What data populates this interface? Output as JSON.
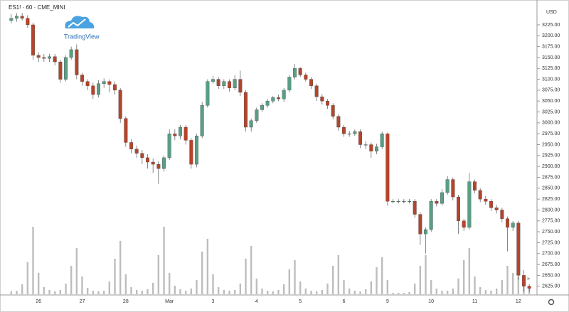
{
  "chart_data": {
    "type": "candlestick",
    "title": "ES1! · 60 · CME_MINI",
    "currency": "USD",
    "watermark": "TradingView",
    "up_color": "#5a9e85",
    "down_color": "#b5442c",
    "volume_color": "#bdbdbd",
    "ylim": [
      2605,
      3282
    ],
    "yticks": [
      {
        "value": 2625,
        "label": "2625.00"
      },
      {
        "value": 2650,
        "label": "2650.00"
      },
      {
        "value": 2675,
        "label": "2675.00"
      },
      {
        "value": 2700,
        "label": "2700.00"
      },
      {
        "value": 2725,
        "label": "2725.00"
      },
      {
        "value": 2750,
        "label": "2750.00"
      },
      {
        "value": 2775,
        "label": "2775.00"
      },
      {
        "value": 2800,
        "label": "2800.00"
      },
      {
        "value": 2825,
        "label": "2825.00"
      },
      {
        "value": 2850,
        "label": "2850.00"
      },
      {
        "value": 2875,
        "label": "2875.00"
      },
      {
        "value": 2900,
        "label": "2900.00"
      },
      {
        "value": 2925,
        "label": "2925.00"
      },
      {
        "value": 2950,
        "label": "2950.00"
      },
      {
        "value": 2975,
        "label": "2975.00"
      },
      {
        "value": 3000,
        "label": "3000.00"
      },
      {
        "value": 3025,
        "label": "3025.00"
      },
      {
        "value": 3050,
        "label": "3050.00"
      },
      {
        "value": 3075,
        "label": "3075.00"
      },
      {
        "value": 3100,
        "label": "3100.00"
      },
      {
        "value": 3125,
        "label": "3125.00"
      },
      {
        "value": 3150,
        "label": "3150.00"
      },
      {
        "value": 3175,
        "label": "3175.00"
      },
      {
        "value": 3200,
        "label": "3200.00"
      },
      {
        "value": 3225,
        "label": "3225.00"
      }
    ],
    "categories": [
      null,
      null,
      null,
      null,
      null,
      "26",
      null,
      null,
      null,
      null,
      null,
      null,
      null,
      "27",
      null,
      null,
      null,
      null,
      null,
      null,
      null,
      "28",
      null,
      null,
      null,
      null,
      null,
      null,
      null,
      "Mar",
      null,
      null,
      null,
      null,
      null,
      null,
      null,
      "3",
      null,
      null,
      null,
      null,
      null,
      null,
      null,
      "4",
      null,
      null,
      null,
      null,
      null,
      null,
      null,
      "5",
      null,
      null,
      null,
      null,
      null,
      null,
      null,
      "6",
      null,
      null,
      null,
      null,
      null,
      null,
      null,
      "9",
      null,
      null,
      null,
      null,
      null,
      null,
      null,
      "10",
      null,
      null,
      null,
      null,
      null,
      null,
      null,
      "11",
      null,
      null,
      null,
      null,
      null,
      null,
      null,
      "12",
      null,
      null
    ],
    "open": [
      3235,
      3240,
      3245,
      3240,
      3225,
      3155,
      3150,
      3148,
      3152,
      3140,
      3100,
      3150,
      3168,
      3110,
      3095,
      3085,
      3065,
      3090,
      3095,
      3088,
      3075,
      3010,
      2955,
      2940,
      2930,
      2920,
      2910,
      2905,
      2895,
      2920,
      2975,
      2970,
      2990,
      2960,
      2905,
      2970,
      3040,
      3095,
      3100,
      3085,
      3095,
      3080,
      3100,
      3070,
      2990,
      3005,
      3030,
      3040,
      3050,
      3058,
      3055,
      3075,
      3105,
      3125,
      3110,
      3100,
      3085,
      3060,
      3050,
      3040,
      3015,
      2990,
      2975,
      2975,
      2980,
      2950,
      2950,
      2935,
      2945,
      2975,
      2820,
      2820,
      2820,
      2820,
      2820,
      2790,
      2745,
      2755,
      2820,
      2815,
      2840,
      2870,
      2830,
      2775,
      2760,
      2865,
      2845,
      2825,
      2820,
      2805,
      2800,
      2780,
      2760,
      2770,
      2650,
      2625
    ],
    "high": [
      3250,
      3252,
      3252,
      3247,
      3230,
      3162,
      3158,
      3158,
      3158,
      3145,
      3155,
      3175,
      3180,
      3115,
      3100,
      3092,
      3098,
      3102,
      3100,
      3095,
      3080,
      3015,
      2962,
      2948,
      2938,
      2928,
      2918,
      2912,
      2925,
      2985,
      2985,
      2995,
      2995,
      2965,
      2975,
      3048,
      3100,
      3108,
      3105,
      3100,
      3100,
      3110,
      3120,
      3075,
      3010,
      3035,
      3045,
      3055,
      3062,
      3065,
      3080,
      3110,
      3135,
      3128,
      3115,
      3105,
      3090,
      3066,
      3055,
      3045,
      3020,
      2995,
      2982,
      2985,
      2985,
      2958,
      2955,
      2952,
      2980,
      2978,
      2825,
      2825,
      2825,
      2825,
      2825,
      2795,
      2760,
      2825,
      2825,
      2848,
      2878,
      2875,
      2835,
      2780,
      2885,
      2870,
      2850,
      2832,
      2825,
      2812,
      2805,
      2785,
      2775,
      2775,
      2662,
      2630
    ],
    "low": [
      3228,
      3232,
      3235,
      3218,
      3145,
      3140,
      3140,
      3140,
      3132,
      3092,
      3095,
      3145,
      3100,
      3085,
      3075,
      3055,
      3058,
      3080,
      3070,
      3065,
      3000,
      2945,
      2930,
      2920,
      2905,
      2895,
      2885,
      2860,
      2888,
      2915,
      2960,
      2962,
      2950,
      2895,
      2898,
      2965,
      3035,
      3090,
      3078,
      3078,
      3072,
      3075,
      3062,
      2980,
      2980,
      3000,
      3025,
      3035,
      3045,
      3050,
      3048,
      3070,
      3100,
      3105,
      3095,
      3078,
      3050,
      3042,
      3032,
      3008,
      2982,
      2968,
      2968,
      2970,
      2942,
      2940,
      2920,
      2928,
      2940,
      2810,
      2815,
      2815,
      2815,
      2815,
      2782,
      2720,
      2700,
      2750,
      2808,
      2810,
      2835,
      2822,
      2745,
      2752,
      2755,
      2838,
      2818,
      2812,
      2798,
      2792,
      2772,
      2705,
      2752,
      2640,
      2612,
      2612
    ],
    "close": [
      3240,
      3245,
      3240,
      3225,
      3155,
      3150,
      3148,
      3152,
      3140,
      3100,
      3150,
      3168,
      3110,
      3095,
      3085,
      3065,
      3090,
      3095,
      3088,
      3075,
      3010,
      2955,
      2940,
      2930,
      2920,
      2910,
      2905,
      2895,
      2920,
      2975,
      2970,
      2990,
      2960,
      2905,
      2970,
      3040,
      3095,
      3100,
      3085,
      3095,
      3080,
      3100,
      3070,
      2990,
      3005,
      3030,
      3040,
      3050,
      3058,
      3055,
      3075,
      3105,
      3125,
      3110,
      3100,
      3085,
      3060,
      3050,
      3040,
      3015,
      2990,
      2975,
      2975,
      2980,
      2950,
      2950,
      2935,
      2945,
      2975,
      2820,
      2820,
      2820,
      2820,
      2820,
      2790,
      2745,
      2755,
      2820,
      2815,
      2840,
      2870,
      2830,
      2775,
      2760,
      2865,
      2845,
      2825,
      2820,
      2805,
      2800,
      2780,
      2760,
      2770,
      2650,
      2625,
      2620
    ],
    "volume": [
      4,
      5,
      14,
      45,
      95,
      30,
      10,
      6,
      4,
      6,
      15,
      40,
      65,
      25,
      9,
      5,
      4,
      5,
      18,
      50,
      75,
      28,
      10,
      6,
      5,
      7,
      16,
      55,
      95,
      30,
      12,
      7,
      5,
      8,
      20,
      60,
      78,
      28,
      10,
      6,
      5,
      6,
      15,
      50,
      68,
      22,
      8,
      5,
      4,
      6,
      14,
      35,
      48,
      18,
      8,
      5,
      4,
      6,
      15,
      40,
      55,
      20,
      8,
      5,
      4,
      7,
      18,
      38,
      52,
      20,
      2,
      2,
      2,
      3,
      15,
      40,
      55,
      20,
      8,
      5,
      5,
      8,
      22,
      48,
      65,
      25,
      10,
      6,
      5,
      8,
      20,
      40,
      30,
      25,
      15,
      8
    ]
  }
}
